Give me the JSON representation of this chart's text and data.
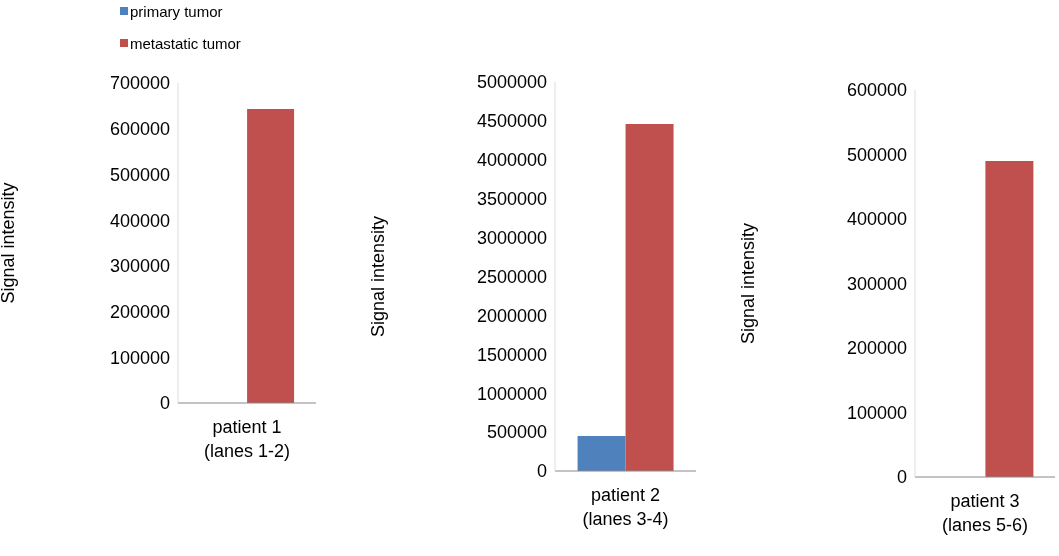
{
  "chart_data": [
    {
      "type": "bar",
      "ylabel": "Signal intensity",
      "categories": [
        "patient 1\n(lanes 1-2)"
      ],
      "legend": "top left",
      "grid": false,
      "ylim": [
        0,
        700000
      ],
      "yticks": [
        0,
        100000,
        200000,
        300000,
        400000,
        500000,
        600000,
        700000
      ],
      "series": [
        {
          "name": "primary tumor",
          "color": "#4f81bd",
          "values": [
            0
          ]
        },
        {
          "name": "metastatic tumor",
          "color": "#c0504d",
          "values": [
            643000
          ]
        }
      ]
    },
    {
      "type": "bar",
      "ylabel": "Signal intensity",
      "categories": [
        "patient 2\n(lanes 3-4)"
      ],
      "grid": false,
      "ylim": [
        0,
        5000000
      ],
      "yticks": [
        0,
        500000,
        1000000,
        1500000,
        2000000,
        2500000,
        3000000,
        3500000,
        4000000,
        4500000,
        5000000
      ],
      "series": [
        {
          "color": "#4f81bd",
          "values": [
            450000
          ]
        },
        {
          "color": "#c0504d",
          "values": [
            4460000
          ]
        }
      ]
    },
    {
      "type": "bar",
      "ylabel": "Signal intensity",
      "categories": [
        "patient 3\n(lanes 5-6)"
      ],
      "grid": false,
      "ylim": [
        0,
        600000
      ],
      "yticks": [
        0,
        100000,
        200000,
        300000,
        400000,
        500000,
        600000
      ],
      "series": [
        {
          "color": "#4f81bd",
          "values": [
            0
          ]
        },
        {
          "color": "#c0504d",
          "values": [
            490000
          ]
        }
      ]
    }
  ]
}
